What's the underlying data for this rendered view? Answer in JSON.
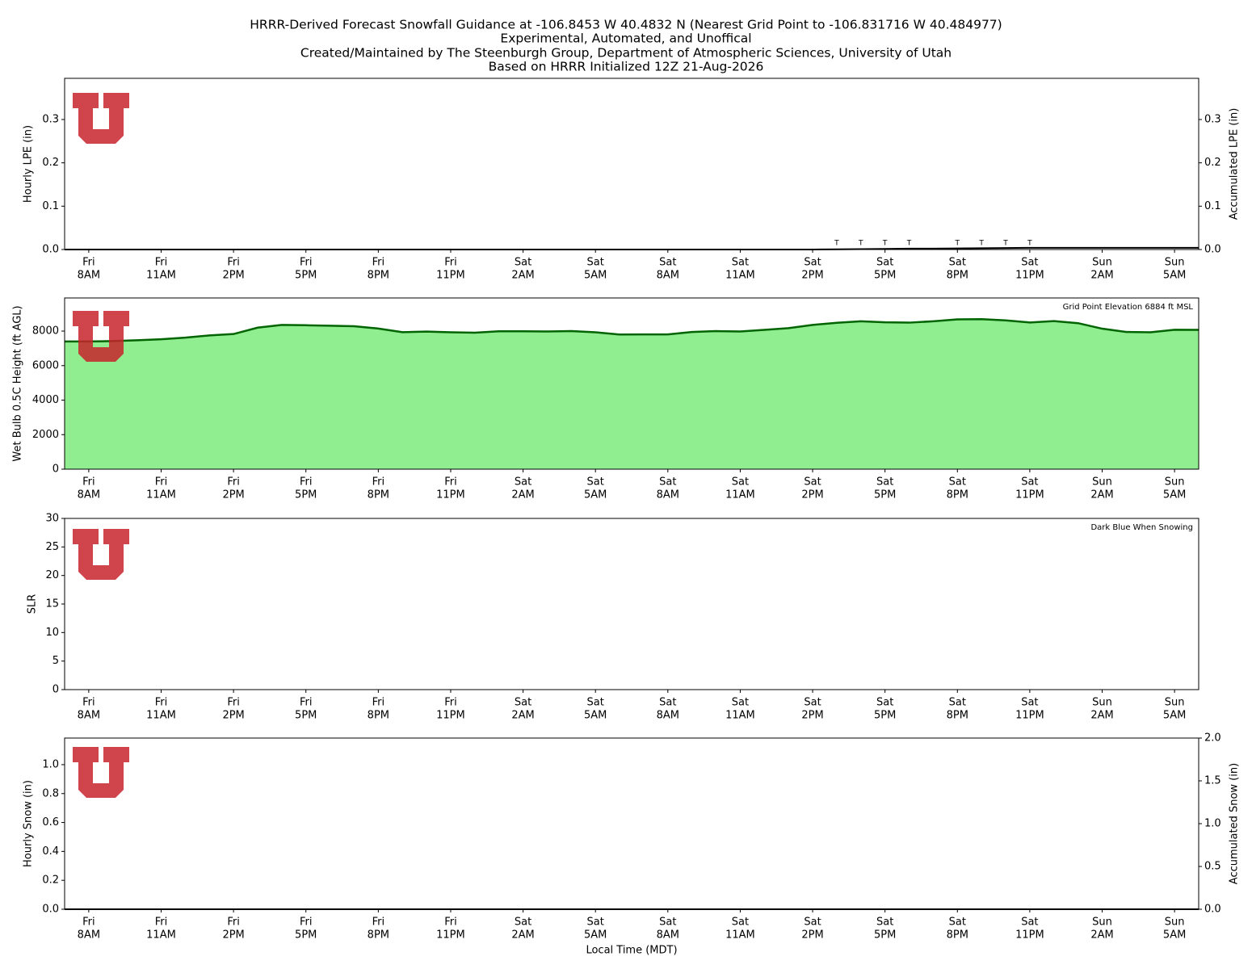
{
  "title": [
    "HRRR-Derived Forecast Snowfall Guidance at -106.8453 W 40.4832 N (Nearest Grid Point to -106.831716 W 40.484977)",
    "Experimental, Automated, and Unoffical",
    "Created/Maintained by The Steenburgh Group, Department of Atmospheric Sciences, University of Utah",
    "Based on HRRR Initialized 12Z 21-Aug-2026"
  ],
  "chart_data": [
    {
      "type": "line",
      "ylabel": "Hourly LPE (in)",
      "y2label": "Accumulated LPE (in)",
      "xlim": [
        -1,
        46
      ],
      "ylim": [
        0,
        0.395
      ],
      "y2lim": [
        0,
        0.395
      ],
      "yticks": [
        {
          "value": 0,
          "label": "0.0"
        },
        0.1,
        0.2,
        0.3
      ],
      "y2ticks": [
        {
          "value": 0,
          "label": "0.0"
        },
        0.1,
        0.2,
        0.3
      ],
      "xticks": [
        {
          "value": 0,
          "label": [
            "Fri",
            "8AM"
          ]
        },
        {
          "value": 3,
          "label": [
            "Fri",
            "11AM"
          ]
        },
        {
          "value": 6,
          "label": [
            "Fri",
            "2PM"
          ]
        },
        {
          "value": 9,
          "label": [
            "Fri",
            "5PM"
          ]
        },
        {
          "value": 12,
          "label": [
            "Fri",
            "8PM"
          ]
        },
        {
          "value": 15,
          "label": [
            "Fri",
            "11PM"
          ]
        },
        {
          "value": 18,
          "label": [
            "Sat",
            "2AM"
          ]
        },
        {
          "value": 21,
          "label": [
            "Sat",
            "5AM"
          ]
        },
        {
          "value": 24,
          "label": [
            "Sat",
            "8AM"
          ]
        },
        {
          "value": 27,
          "label": [
            "Sat",
            "11AM"
          ]
        },
        {
          "value": 30,
          "label": [
            "Sat",
            "2PM"
          ]
        },
        {
          "value": 33,
          "label": [
            "Sat",
            "5PM"
          ]
        },
        {
          "value": 36,
          "label": [
            "Sat",
            "8PM"
          ]
        },
        {
          "value": 39,
          "label": [
            "Sat",
            "11PM"
          ]
        },
        {
          "value": 42,
          "label": [
            "Sun",
            "2AM"
          ]
        },
        {
          "value": 45,
          "label": [
            "Sun",
            "5AM"
          ]
        }
      ],
      "x": [
        -1,
        0,
        1,
        2,
        3,
        4,
        5,
        6,
        7,
        8,
        9,
        10,
        11,
        12,
        13,
        14,
        15,
        16,
        17,
        18,
        19,
        20,
        21,
        22,
        23,
        24,
        25,
        26,
        27,
        28,
        29,
        30,
        31,
        32,
        33,
        34,
        35,
        36,
        37,
        38,
        39,
        40,
        41,
        42,
        43,
        44,
        45,
        46
      ],
      "series": [
        {
          "color": "#000000",
          "axis": "y2",
          "values": [
            0,
            0,
            0,
            0,
            0,
            0,
            0,
            0,
            0,
            0,
            0,
            0,
            0,
            0,
            0,
            0,
            0,
            0,
            0,
            0,
            0,
            0,
            0,
            0,
            0,
            0,
            0,
            0,
            0,
            0,
            0,
            0,
            0.0005,
            0.001,
            0.0015,
            0.002,
            0.002,
            0.0025,
            0.003,
            0.0035,
            0.004,
            0.004,
            0.004,
            0.004,
            0.004,
            0.004,
            0.004,
            0.004
          ]
        }
      ],
      "trace_marks": [
        {
          "x": 31,
          "label": "T"
        },
        {
          "x": 32,
          "label": "T"
        },
        {
          "x": 33,
          "label": "T"
        },
        {
          "x": 34,
          "label": "T"
        },
        {
          "x": 36,
          "label": "T"
        },
        {
          "x": 37,
          "label": "T"
        },
        {
          "x": 38,
          "label": "T"
        },
        {
          "x": 39,
          "label": "T"
        }
      ]
    },
    {
      "type": "area",
      "ylabel": "Wet Bulb 0.5C Height (ft AGL)",
      "annotation": "Grid Point Elevation 6884 ft MSL",
      "xlim": [
        -1,
        46
      ],
      "ylim": [
        0,
        9920
      ],
      "yticks": [
        0,
        2000,
        4000,
        6000,
        8000
      ],
      "xticks": [
        {
          "value": 0,
          "label": [
            "Fri",
            "8AM"
          ]
        },
        {
          "value": 3,
          "label": [
            "Fri",
            "11AM"
          ]
        },
        {
          "value": 6,
          "label": [
            "Fri",
            "2PM"
          ]
        },
        {
          "value": 9,
          "label": [
            "Fri",
            "5PM"
          ]
        },
        {
          "value": 12,
          "label": [
            "Fri",
            "8PM"
          ]
        },
        {
          "value": 15,
          "label": [
            "Fri",
            "11PM"
          ]
        },
        {
          "value": 18,
          "label": [
            "Sat",
            "2AM"
          ]
        },
        {
          "value": 21,
          "label": [
            "Sat",
            "5AM"
          ]
        },
        {
          "value": 24,
          "label": [
            "Sat",
            "8AM"
          ]
        },
        {
          "value": 27,
          "label": [
            "Sat",
            "11AM"
          ]
        },
        {
          "value": 30,
          "label": [
            "Sat",
            "2PM"
          ]
        },
        {
          "value": 33,
          "label": [
            "Sat",
            "5PM"
          ]
        },
        {
          "value": 36,
          "label": [
            "Sat",
            "8PM"
          ]
        },
        {
          "value": 39,
          "label": [
            "Sat",
            "11PM"
          ]
        },
        {
          "value": 42,
          "label": [
            "Sun",
            "2AM"
          ]
        },
        {
          "value": 45,
          "label": [
            "Sun",
            "5AM"
          ]
        }
      ],
      "x": [
        -1,
        0,
        1,
        2,
        3,
        4,
        5,
        6,
        7,
        8,
        9,
        10,
        11,
        12,
        13,
        14,
        15,
        16,
        17,
        18,
        19,
        20,
        21,
        22,
        23,
        24,
        25,
        26,
        27,
        28,
        29,
        30,
        31,
        32,
        33,
        34,
        35,
        36,
        37,
        38,
        39,
        40,
        41,
        42,
        43,
        44,
        45,
        46
      ],
      "series": [
        {
          "color": "#006400",
          "fill": "#90ee90",
          "values": [
            7400,
            7400,
            7420,
            7470,
            7530,
            7620,
            7750,
            7830,
            8200,
            8360,
            8340,
            8310,
            8280,
            8150,
            7940,
            7970,
            7930,
            7910,
            7990,
            7990,
            7980,
            8000,
            7930,
            7800,
            7810,
            7810,
            7950,
            8000,
            7980,
            8070,
            8170,
            8360,
            8480,
            8570,
            8510,
            8490,
            8570,
            8680,
            8690,
            8620,
            8500,
            8580,
            8460,
            8140,
            7950,
            7930,
            8080,
            8070
          ]
        }
      ]
    },
    {
      "type": "line",
      "ylabel": "SLR",
      "annotation": "Dark Blue When Snowing",
      "xlim": [
        -1,
        46
      ],
      "ylim": [
        0,
        30
      ],
      "yticks": [
        0,
        5,
        10,
        15,
        20,
        25,
        30
      ],
      "xticks": [
        {
          "value": 0,
          "label": [
            "Fri",
            "8AM"
          ]
        },
        {
          "value": 3,
          "label": [
            "Fri",
            "11AM"
          ]
        },
        {
          "value": 6,
          "label": [
            "Fri",
            "2PM"
          ]
        },
        {
          "value": 9,
          "label": [
            "Fri",
            "5PM"
          ]
        },
        {
          "value": 12,
          "label": [
            "Fri",
            "8PM"
          ]
        },
        {
          "value": 15,
          "label": [
            "Fri",
            "11PM"
          ]
        },
        {
          "value": 18,
          "label": [
            "Sat",
            "2AM"
          ]
        },
        {
          "value": 21,
          "label": [
            "Sat",
            "5AM"
          ]
        },
        {
          "value": 24,
          "label": [
            "Sat",
            "8AM"
          ]
        },
        {
          "value": 27,
          "label": [
            "Sat",
            "11AM"
          ]
        },
        {
          "value": 30,
          "label": [
            "Sat",
            "2PM"
          ]
        },
        {
          "value": 33,
          "label": [
            "Sat",
            "5PM"
          ]
        },
        {
          "value": 36,
          "label": [
            "Sat",
            "8PM"
          ]
        },
        {
          "value": 39,
          "label": [
            "Sat",
            "11PM"
          ]
        },
        {
          "value": 42,
          "label": [
            "Sun",
            "2AM"
          ]
        },
        {
          "value": 45,
          "label": [
            "Sun",
            "5AM"
          ]
        }
      ]
    },
    {
      "type": "line",
      "ylabel": "Hourly Snow (in)",
      "y2label": "Accumulated Snow (in)",
      "xlabel": "Local Time (MDT)",
      "xlim": [
        -1,
        46
      ],
      "ylim": [
        0,
        1.184
      ],
      "y2lim": [
        0,
        2
      ],
      "yticks": [
        {
          "value": 0,
          "label": "0.0"
        },
        0.2,
        0.4,
        0.6,
        0.8,
        {
          "value": 1,
          "label": "1.0"
        }
      ],
      "y2ticks": [
        {
          "value": 0,
          "label": "0.0"
        },
        0.5,
        {
          "value": 1,
          "label": "1.0"
        },
        1.5,
        {
          "value": 2,
          "label": "2.0"
        }
      ],
      "xticks": [
        {
          "value": 0,
          "label": [
            "Fri",
            "8AM"
          ]
        },
        {
          "value": 3,
          "label": [
            "Fri",
            "11AM"
          ]
        },
        {
          "value": 6,
          "label": [
            "Fri",
            "2PM"
          ]
        },
        {
          "value": 9,
          "label": [
            "Fri",
            "5PM"
          ]
        },
        {
          "value": 12,
          "label": [
            "Fri",
            "8PM"
          ]
        },
        {
          "value": 15,
          "label": [
            "Fri",
            "11PM"
          ]
        },
        {
          "value": 18,
          "label": [
            "Sat",
            "2AM"
          ]
        },
        {
          "value": 21,
          "label": [
            "Sat",
            "5AM"
          ]
        },
        {
          "value": 24,
          "label": [
            "Sat",
            "8AM"
          ]
        },
        {
          "value": 27,
          "label": [
            "Sat",
            "11AM"
          ]
        },
        {
          "value": 30,
          "label": [
            "Sat",
            "2PM"
          ]
        },
        {
          "value": 33,
          "label": [
            "Sat",
            "5PM"
          ]
        },
        {
          "value": 36,
          "label": [
            "Sat",
            "8PM"
          ]
        },
        {
          "value": 39,
          "label": [
            "Sat",
            "11PM"
          ]
        },
        {
          "value": 42,
          "label": [
            "Sun",
            "2AM"
          ]
        },
        {
          "value": 45,
          "label": [
            "Sun",
            "5AM"
          ]
        }
      ],
      "x": [
        -1,
        0,
        1,
        2,
        3,
        4,
        5,
        6,
        7,
        8,
        9,
        10,
        11,
        12,
        13,
        14,
        15,
        16,
        17,
        18,
        19,
        20,
        21,
        22,
        23,
        24,
        25,
        26,
        27,
        28,
        29,
        30,
        31,
        32,
        33,
        34,
        35,
        36,
        37,
        38,
        39,
        40,
        41,
        42,
        43,
        44,
        45,
        46
      ],
      "series": [
        {
          "color": "#000000",
          "axis": "y2",
          "values": [
            0,
            0,
            0,
            0,
            0,
            0,
            0,
            0,
            0,
            0,
            0,
            0,
            0,
            0,
            0,
            0,
            0,
            0,
            0,
            0,
            0,
            0,
            0,
            0,
            0,
            0,
            0,
            0,
            0,
            0,
            0,
            0,
            0,
            0,
            0,
            0,
            0,
            0,
            0,
            0,
            0,
            0,
            0,
            0,
            0,
            0,
            0,
            0
          ]
        }
      ]
    }
  ]
}
